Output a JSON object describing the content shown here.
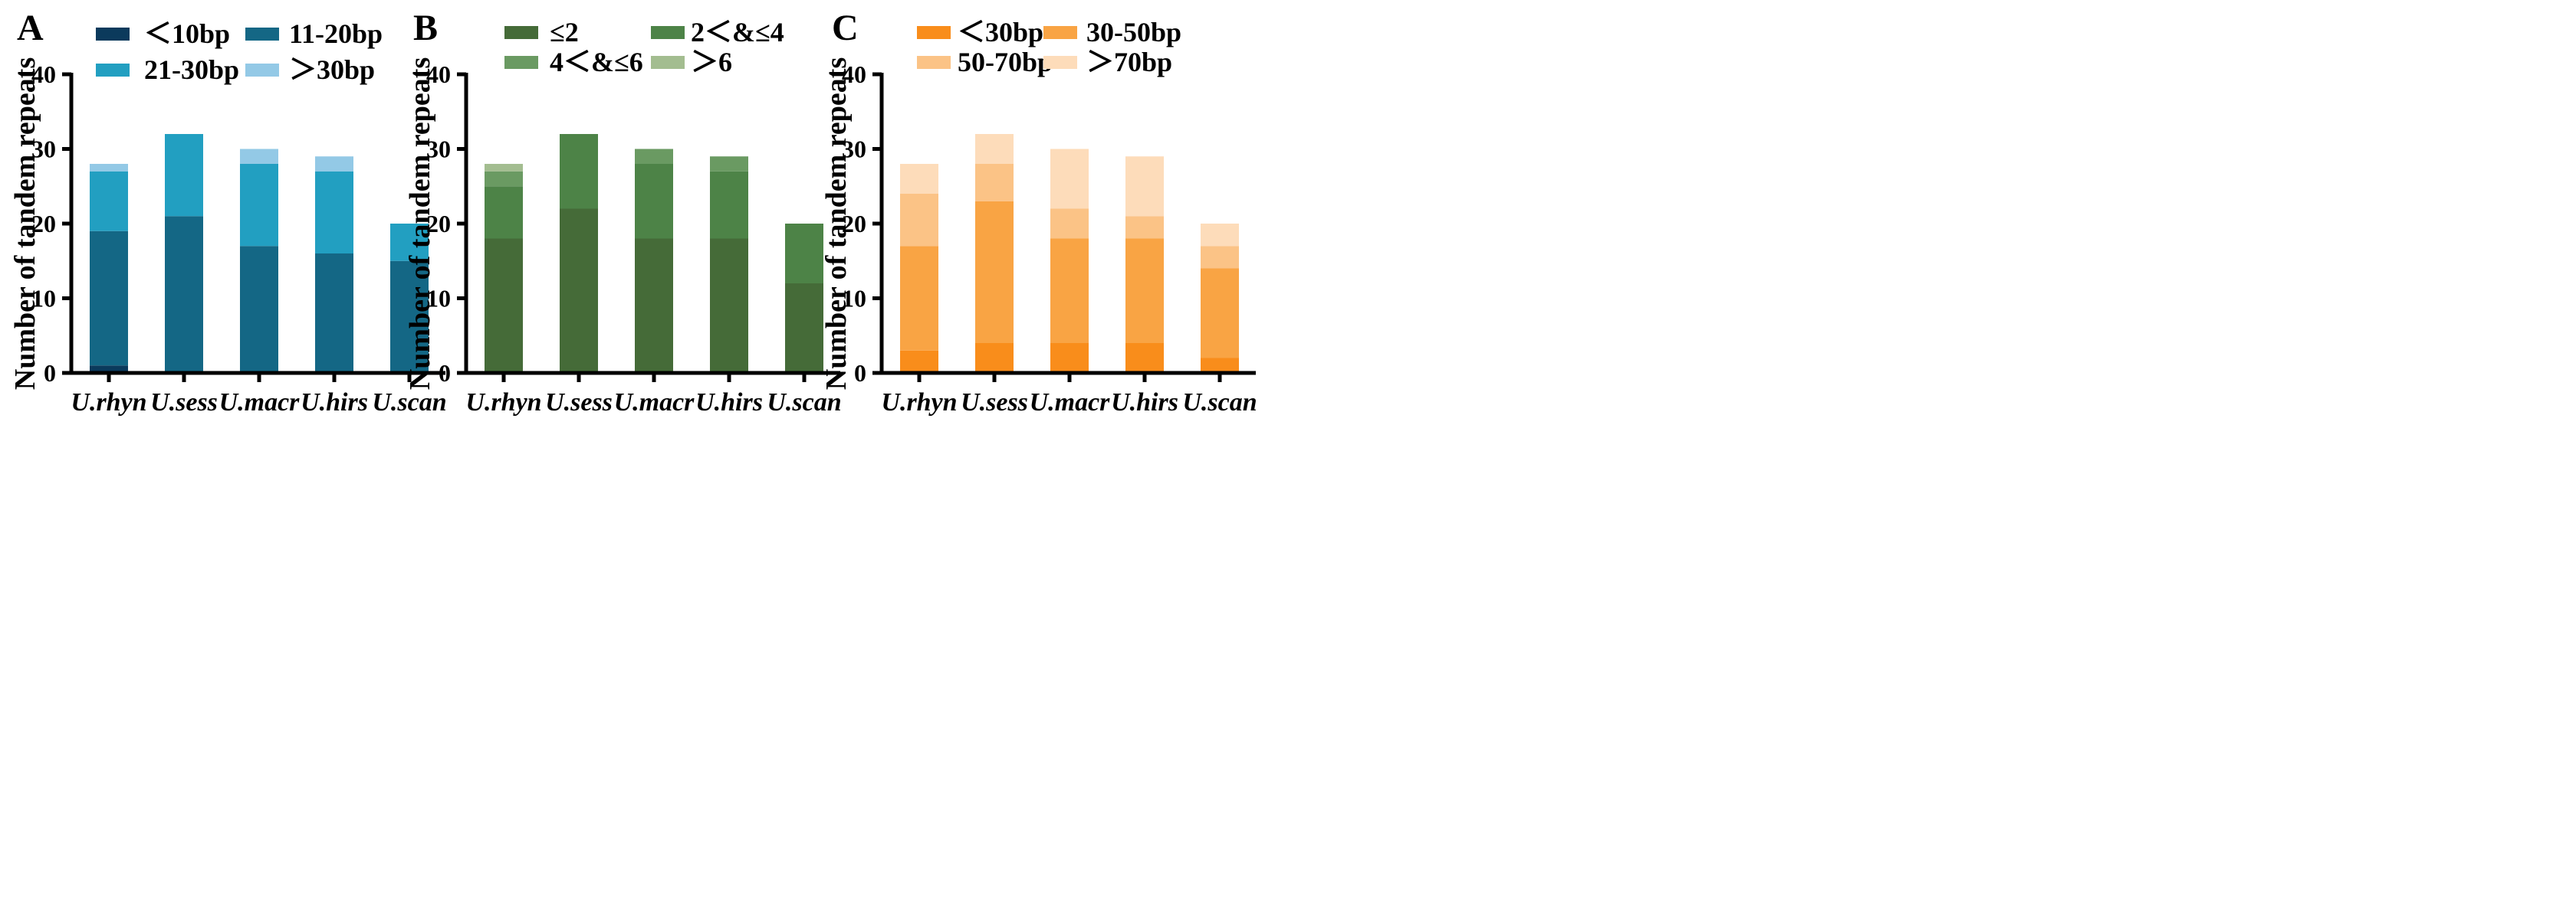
{
  "chart_data": [
    {
      "type": "bar",
      "stacked": true,
      "panel_label": "A",
      "ylabel": "Number of tandem repeats",
      "xlabel": "",
      "ylim": [
        0,
        40
      ],
      "yticks": [
        "0",
        "10",
        "20",
        "30",
        "40"
      ],
      "grid": false,
      "legend_position": "top",
      "categories": [
        "U.rhyn",
        "U.sess",
        "U.macr",
        "U.hirs",
        "U.scan"
      ],
      "series": [
        {
          "name": "＜10bp",
          "color": "#0b3a5c",
          "values": [
            1,
            0,
            0,
            0,
            0
          ]
        },
        {
          "name": "11-20bp",
          "color": "#146785",
          "values": [
            18,
            21,
            17,
            16,
            15
          ]
        },
        {
          "name": "21-30bp",
          "color": "#229fc1",
          "values": [
            8,
            11,
            11,
            11,
            5
          ]
        },
        {
          "name": "＞30bp",
          "color": "#93c9e6",
          "values": [
            1,
            0,
            2,
            2,
            0
          ]
        }
      ]
    },
    {
      "type": "bar",
      "stacked": true,
      "panel_label": "B",
      "ylabel": "Number of tandem repeats",
      "xlabel": "",
      "ylim": [
        0,
        40
      ],
      "yticks": [
        "0",
        "10",
        "20",
        "30",
        "40"
      ],
      "grid": false,
      "legend_position": "top",
      "categories": [
        "U.rhyn",
        "U.sess",
        "U.macr",
        "U.hirs",
        "U.scan"
      ],
      "series": [
        {
          "name": "≤2",
          "color": "#456b38",
          "values": [
            18,
            22,
            18,
            18,
            12
          ]
        },
        {
          "name": "2＜&≤4",
          "color": "#4d8347",
          "values": [
            7,
            10,
            10,
            9,
            8
          ]
        },
        {
          "name": "4＜&≤6",
          "color": "#6a9a62",
          "values": [
            2,
            0,
            2,
            2,
            0
          ]
        },
        {
          "name": "＞6",
          "color": "#a3bd90",
          "values": [
            1,
            0,
            0,
            0,
            0
          ]
        }
      ]
    },
    {
      "type": "bar",
      "stacked": true,
      "panel_label": "C",
      "ylabel": "Number of tandem repeats",
      "xlabel": "",
      "ylim": [
        0,
        40
      ],
      "yticks": [
        "0",
        "10",
        "20",
        "30",
        "40"
      ],
      "grid": false,
      "legend_position": "top",
      "categories": [
        "U.rhyn",
        "U.sess",
        "U.macr",
        "U.hirs",
        "U.scan"
      ],
      "series": [
        {
          "name": "＜30bp",
          "color": "#f98d1b",
          "values": [
            3,
            4,
            4,
            4,
            2
          ]
        },
        {
          "name": "30-50bp",
          "color": "#f9a444",
          "values": [
            14,
            19,
            14,
            14,
            12
          ]
        },
        {
          "name": "50-70bp",
          "color": "#fbc386",
          "values": [
            7,
            5,
            4,
            3,
            3
          ]
        },
        {
          "name": "＞70bp",
          "color": "#fddcba",
          "values": [
            4,
            4,
            8,
            8,
            3
          ]
        }
      ]
    }
  ]
}
